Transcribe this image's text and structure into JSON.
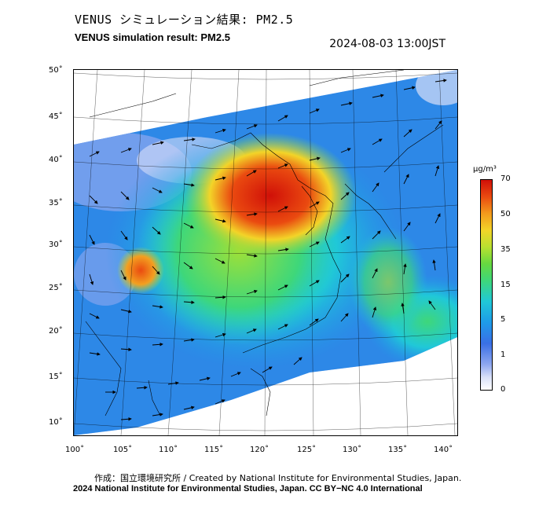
{
  "title_jp": "VENUS シミュレーション結果: PM2.5",
  "title_en": "VENUS simulation result: PM2.5",
  "timestamp": "2024-08-03 13:00JST",
  "y_axis_labels": [
    "50˚",
    "45˚",
    "40˚",
    "35˚",
    "30˚",
    "25˚",
    "20˚",
    "15˚",
    "10˚"
  ],
  "x_axis_labels": [
    "100˚",
    "105˚",
    "110˚",
    "115˚",
    "120˚",
    "125˚",
    "130˚",
    "135˚",
    "140˚"
  ],
  "colorbar": {
    "unit": "μg/m³",
    "ticks": [
      "70",
      "50",
      "35",
      "15",
      "5",
      "1",
      "0"
    ],
    "colors": [
      "#ffffff",
      "#8fa8f0",
      "#3a6fe6",
      "#20c8d8",
      "#3ed77a",
      "#b8e030",
      "#f3d428",
      "#ea4a10",
      "#d01008"
    ]
  },
  "credit_line_1": "作成：国立環境研究所 / Created by National Institute for Environmental Studies, Japan.",
  "credit_line_2": "2024 National Institute for Environmental Studies, Japan. CC BY−NC 4.0 International"
}
